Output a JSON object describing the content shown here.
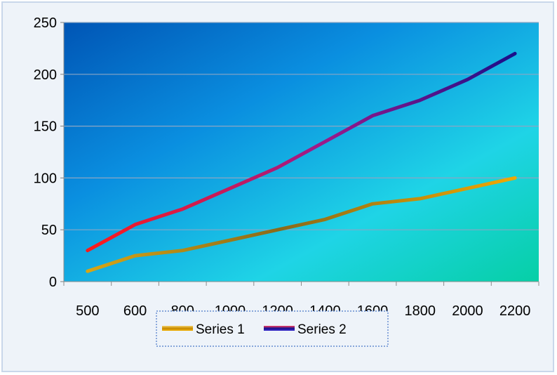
{
  "chart_data": {
    "type": "line",
    "categories": [
      "500",
      "600",
      "800",
      "1000",
      "1200",
      "1400",
      "1600",
      "1800",
      "2000",
      "2200"
    ],
    "series": [
      {
        "name": "Series 1",
        "values": [
          10,
          25,
          30,
          40,
          50,
          60,
          75,
          80,
          90,
          100
        ],
        "color_start": "#d4a011",
        "color_end": "#e8a300"
      },
      {
        "name": "Series 2",
        "values": [
          30,
          55,
          70,
          90,
          110,
          135,
          160,
          175,
          195,
          220
        ],
        "color_start": "#ff1a1a",
        "color_end": "#1a0f8a"
      }
    ],
    "title": "",
    "xlabel": "",
    "ylabel": "",
    "ylim": [
      0,
      250
    ],
    "yticks": [
      "0",
      "50",
      "100",
      "150",
      "200",
      "250"
    ],
    "grid": true,
    "legend_position": "bottom",
    "plot_background": [
      "#0057b8",
      "#0aa0e0",
      "#1fd0e0",
      "#08d0a8"
    ]
  }
}
